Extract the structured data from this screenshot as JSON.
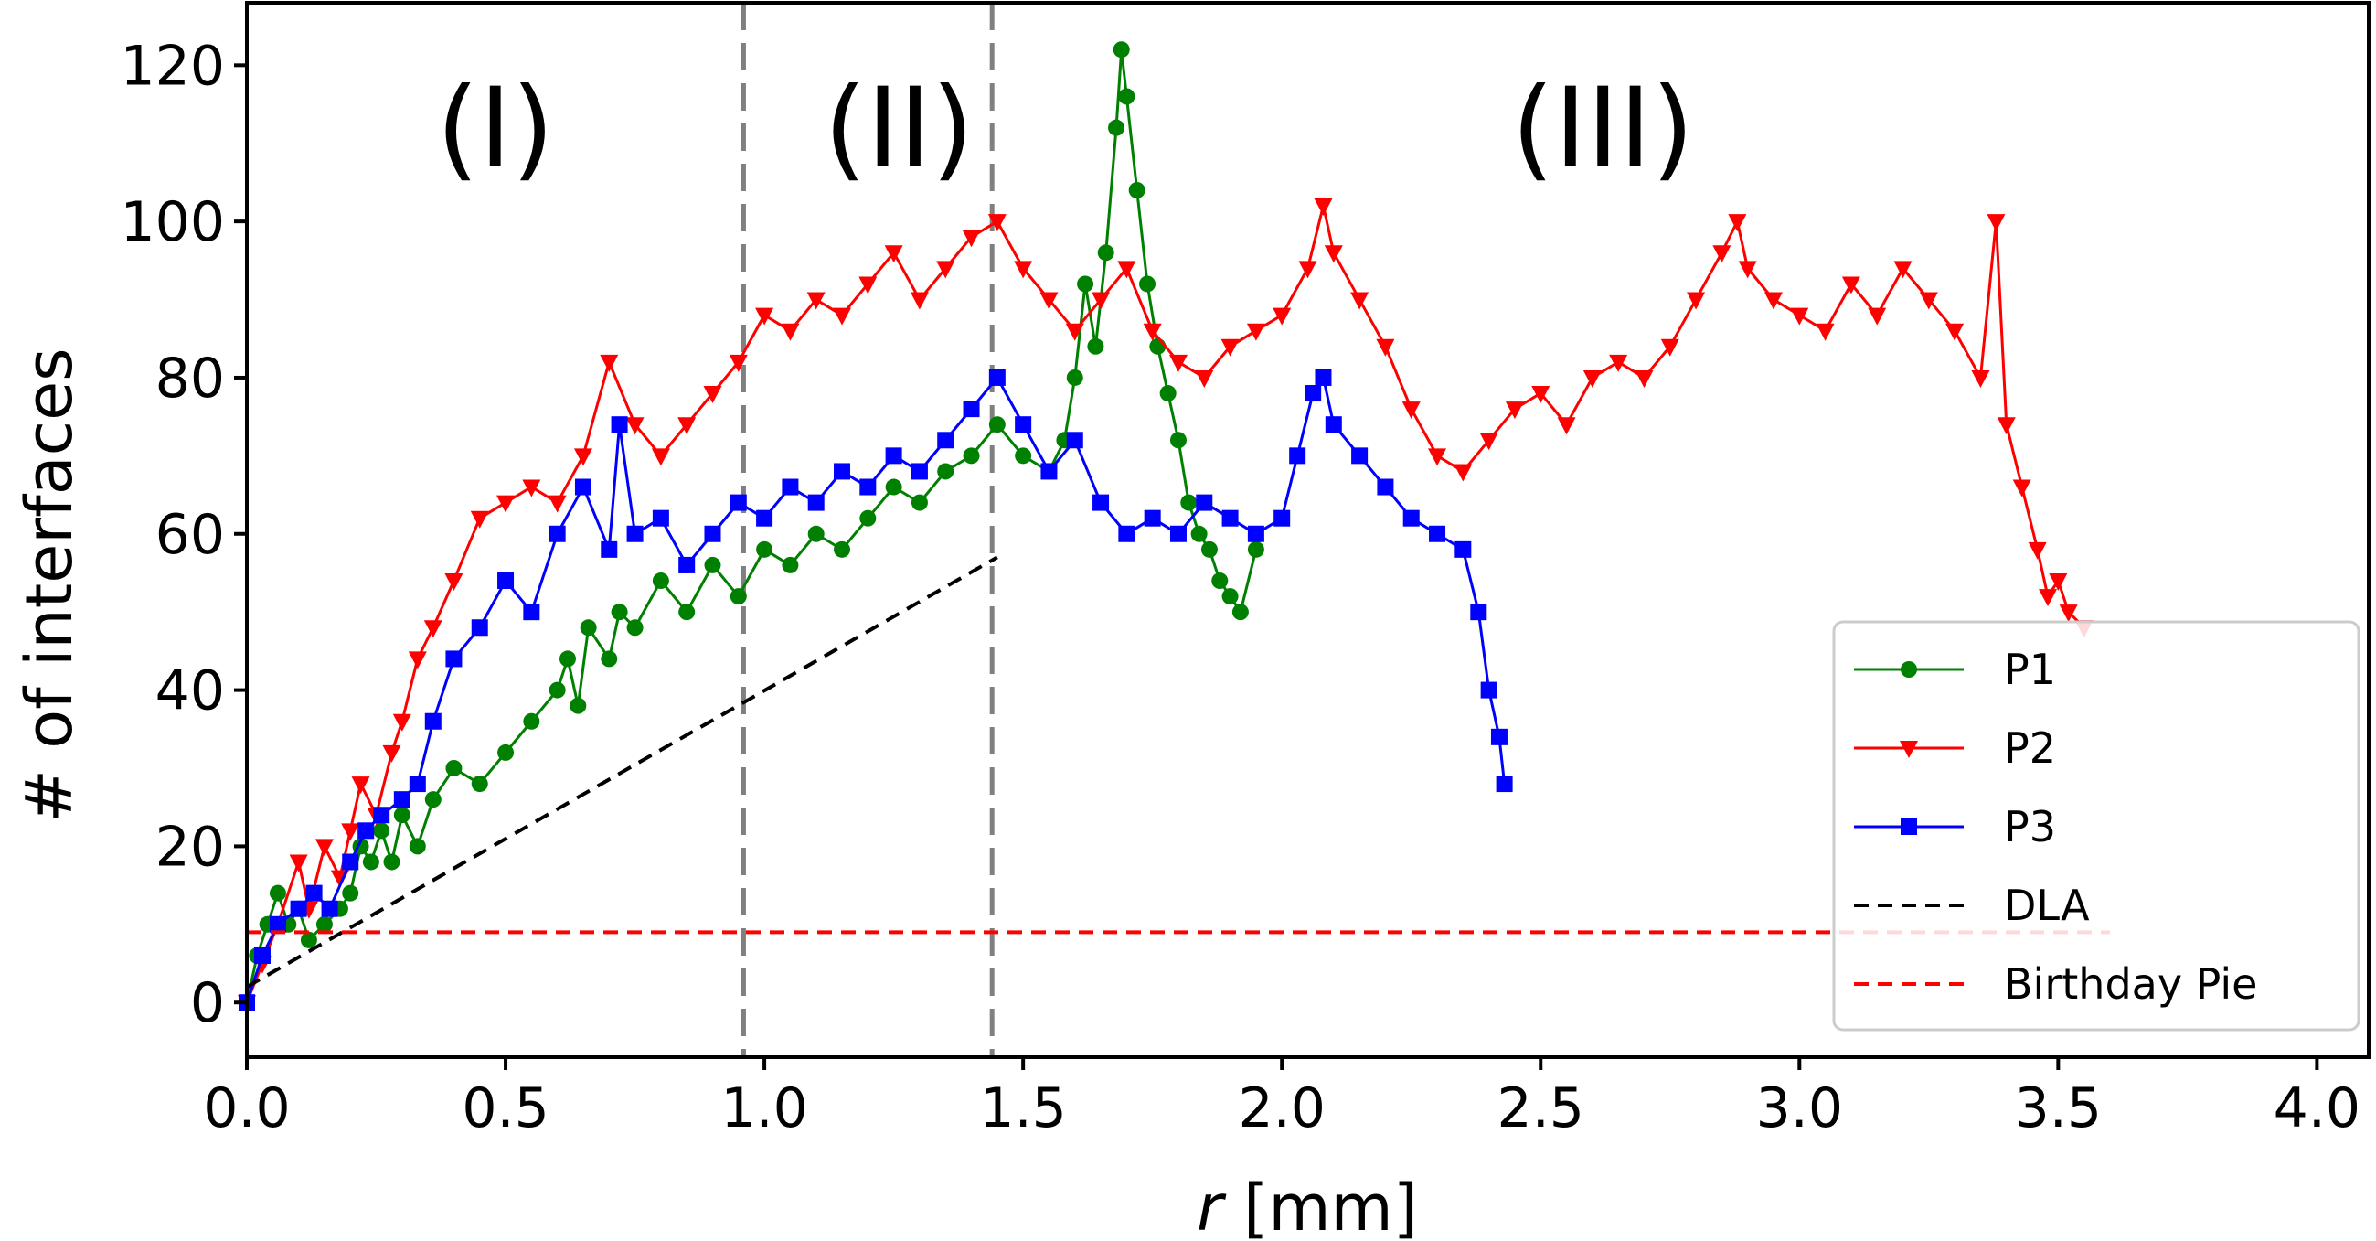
{
  "chart_data": {
    "type": "line",
    "xlabel_var": "r",
    "xlabel_unit": " [mm]",
    "ylabel": "# of interfaces",
    "xlim": [
      0.0,
      4.1
    ],
    "ylim": [
      -7,
      128
    ],
    "x_ticks": [
      "0.0",
      "0.5",
      "1.0",
      "1.5",
      "2.0",
      "2.5",
      "3.0",
      "3.5",
      "4.0"
    ],
    "y_ticks": [
      "0",
      "20",
      "40",
      "60",
      "80",
      "100",
      "120"
    ],
    "x_tick_values": [
      0.0,
      0.5,
      1.0,
      1.5,
      2.0,
      2.5,
      3.0,
      3.5,
      4.0
    ],
    "y_tick_values": [
      0,
      20,
      40,
      60,
      80,
      100,
      120
    ],
    "region_boundaries": [
      0.96,
      1.44
    ],
    "regions": [
      {
        "label": "(I)",
        "x": 0.48,
        "y": 112
      },
      {
        "label": "(II)",
        "x": 1.26,
        "y": 112
      },
      {
        "label": "(III)",
        "x": 2.62,
        "y": 112
      }
    ],
    "series": [
      {
        "name": "P1",
        "color": "#008000",
        "marker": "circle",
        "points": [
          [
            0.0,
            0
          ],
          [
            0.02,
            6
          ],
          [
            0.04,
            10
          ],
          [
            0.06,
            14
          ],
          [
            0.08,
            10
          ],
          [
            0.1,
            12
          ],
          [
            0.12,
            8
          ],
          [
            0.15,
            10
          ],
          [
            0.18,
            12
          ],
          [
            0.2,
            14
          ],
          [
            0.22,
            20
          ],
          [
            0.24,
            18
          ],
          [
            0.26,
            22
          ],
          [
            0.28,
            18
          ],
          [
            0.3,
            24
          ],
          [
            0.33,
            20
          ],
          [
            0.36,
            26
          ],
          [
            0.4,
            30
          ],
          [
            0.45,
            28
          ],
          [
            0.5,
            32
          ],
          [
            0.55,
            36
          ],
          [
            0.6,
            40
          ],
          [
            0.62,
            44
          ],
          [
            0.64,
            38
          ],
          [
            0.66,
            48
          ],
          [
            0.7,
            44
          ],
          [
            0.72,
            50
          ],
          [
            0.75,
            48
          ],
          [
            0.8,
            54
          ],
          [
            0.85,
            50
          ],
          [
            0.9,
            56
          ],
          [
            0.95,
            52
          ],
          [
            1.0,
            58
          ],
          [
            1.05,
            56
          ],
          [
            1.1,
            60
          ],
          [
            1.15,
            58
          ],
          [
            1.2,
            62
          ],
          [
            1.25,
            66
          ],
          [
            1.3,
            64
          ],
          [
            1.35,
            68
          ],
          [
            1.4,
            70
          ],
          [
            1.45,
            74
          ],
          [
            1.5,
            70
          ],
          [
            1.55,
            68
          ],
          [
            1.58,
            72
          ],
          [
            1.6,
            80
          ],
          [
            1.62,
            92
          ],
          [
            1.64,
            84
          ],
          [
            1.66,
            96
          ],
          [
            1.68,
            112
          ],
          [
            1.69,
            122
          ],
          [
            1.7,
            116
          ],
          [
            1.72,
            104
          ],
          [
            1.74,
            92
          ],
          [
            1.76,
            84
          ],
          [
            1.78,
            78
          ],
          [
            1.8,
            72
          ],
          [
            1.82,
            64
          ],
          [
            1.84,
            60
          ],
          [
            1.86,
            58
          ],
          [
            1.88,
            54
          ],
          [
            1.9,
            52
          ],
          [
            1.92,
            50
          ],
          [
            1.95,
            58
          ]
        ]
      },
      {
        "name": "P2",
        "color": "#ff0000",
        "marker": "triangle-down",
        "points": [
          [
            0.0,
            0
          ],
          [
            0.03,
            5
          ],
          [
            0.06,
            10
          ],
          [
            0.1,
            18
          ],
          [
            0.12,
            12
          ],
          [
            0.15,
            20
          ],
          [
            0.18,
            16
          ],
          [
            0.2,
            22
          ],
          [
            0.22,
            28
          ],
          [
            0.25,
            24
          ],
          [
            0.28,
            32
          ],
          [
            0.3,
            36
          ],
          [
            0.33,
            44
          ],
          [
            0.36,
            48
          ],
          [
            0.4,
            54
          ],
          [
            0.45,
            62
          ],
          [
            0.5,
            64
          ],
          [
            0.55,
            66
          ],
          [
            0.6,
            64
          ],
          [
            0.65,
            70
          ],
          [
            0.7,
            82
          ],
          [
            0.75,
            74
          ],
          [
            0.8,
            70
          ],
          [
            0.85,
            74
          ],
          [
            0.9,
            78
          ],
          [
            0.95,
            82
          ],
          [
            1.0,
            88
          ],
          [
            1.05,
            86
          ],
          [
            1.1,
            90
          ],
          [
            1.15,
            88
          ],
          [
            1.2,
            92
          ],
          [
            1.25,
            96
          ],
          [
            1.3,
            90
          ],
          [
            1.35,
            94
          ],
          [
            1.4,
            98
          ],
          [
            1.45,
            100
          ],
          [
            1.5,
            94
          ],
          [
            1.55,
            90
          ],
          [
            1.6,
            86
          ],
          [
            1.65,
            90
          ],
          [
            1.7,
            94
          ],
          [
            1.75,
            86
          ],
          [
            1.8,
            82
          ],
          [
            1.85,
            80
          ],
          [
            1.9,
            84
          ],
          [
            1.95,
            86
          ],
          [
            2.0,
            88
          ],
          [
            2.05,
            94
          ],
          [
            2.08,
            102
          ],
          [
            2.1,
            96
          ],
          [
            2.15,
            90
          ],
          [
            2.2,
            84
          ],
          [
            2.25,
            76
          ],
          [
            2.3,
            70
          ],
          [
            2.35,
            68
          ],
          [
            2.4,
            72
          ],
          [
            2.45,
            76
          ],
          [
            2.5,
            78
          ],
          [
            2.55,
            74
          ],
          [
            2.6,
            80
          ],
          [
            2.65,
            82
          ],
          [
            2.7,
            80
          ],
          [
            2.75,
            84
          ],
          [
            2.8,
            90
          ],
          [
            2.85,
            96
          ],
          [
            2.88,
            100
          ],
          [
            2.9,
            94
          ],
          [
            2.95,
            90
          ],
          [
            3.0,
            88
          ],
          [
            3.05,
            86
          ],
          [
            3.1,
            92
          ],
          [
            3.15,
            88
          ],
          [
            3.2,
            94
          ],
          [
            3.25,
            90
          ],
          [
            3.3,
            86
          ],
          [
            3.35,
            80
          ],
          [
            3.38,
            100
          ],
          [
            3.4,
            74
          ],
          [
            3.43,
            66
          ],
          [
            3.46,
            58
          ],
          [
            3.48,
            52
          ],
          [
            3.5,
            54
          ],
          [
            3.52,
            50
          ],
          [
            3.55,
            48
          ]
        ]
      },
      {
        "name": "P3",
        "color": "#0000ff",
        "marker": "square",
        "points": [
          [
            0.0,
            0
          ],
          [
            0.03,
            6
          ],
          [
            0.06,
            10
          ],
          [
            0.1,
            12
          ],
          [
            0.13,
            14
          ],
          [
            0.16,
            12
          ],
          [
            0.2,
            18
          ],
          [
            0.23,
            22
          ],
          [
            0.26,
            24
          ],
          [
            0.3,
            26
          ],
          [
            0.33,
            28
          ],
          [
            0.36,
            36
          ],
          [
            0.4,
            44
          ],
          [
            0.45,
            48
          ],
          [
            0.5,
            54
          ],
          [
            0.55,
            50
          ],
          [
            0.6,
            60
          ],
          [
            0.65,
            66
          ],
          [
            0.7,
            58
          ],
          [
            0.72,
            74
          ],
          [
            0.75,
            60
          ],
          [
            0.8,
            62
          ],
          [
            0.85,
            56
          ],
          [
            0.9,
            60
          ],
          [
            0.95,
            64
          ],
          [
            1.0,
            62
          ],
          [
            1.05,
            66
          ],
          [
            1.1,
            64
          ],
          [
            1.15,
            68
          ],
          [
            1.2,
            66
          ],
          [
            1.25,
            70
          ],
          [
            1.3,
            68
          ],
          [
            1.35,
            72
          ],
          [
            1.4,
            76
          ],
          [
            1.45,
            80
          ],
          [
            1.5,
            74
          ],
          [
            1.55,
            68
          ],
          [
            1.6,
            72
          ],
          [
            1.65,
            64
          ],
          [
            1.7,
            60
          ],
          [
            1.75,
            62
          ],
          [
            1.8,
            60
          ],
          [
            1.85,
            64
          ],
          [
            1.9,
            62
          ],
          [
            1.95,
            60
          ],
          [
            2.0,
            62
          ],
          [
            2.03,
            70
          ],
          [
            2.06,
            78
          ],
          [
            2.08,
            80
          ],
          [
            2.1,
            74
          ],
          [
            2.15,
            70
          ],
          [
            2.2,
            66
          ],
          [
            2.25,
            62
          ],
          [
            2.3,
            60
          ],
          [
            2.35,
            58
          ],
          [
            2.38,
            50
          ],
          [
            2.4,
            40
          ],
          [
            2.42,
            34
          ],
          [
            2.43,
            28
          ]
        ]
      },
      {
        "name": "DLA",
        "color": "#000000",
        "style": "dashed",
        "points": [
          [
            0.0,
            2
          ],
          [
            1.45,
            57
          ]
        ]
      },
      {
        "name": "Birthday Pie",
        "color": "#ff0000",
        "style": "dashed",
        "points": [
          [
            0.0,
            9
          ],
          [
            3.6,
            9
          ]
        ]
      }
    ],
    "legend_position": "lower-right"
  }
}
